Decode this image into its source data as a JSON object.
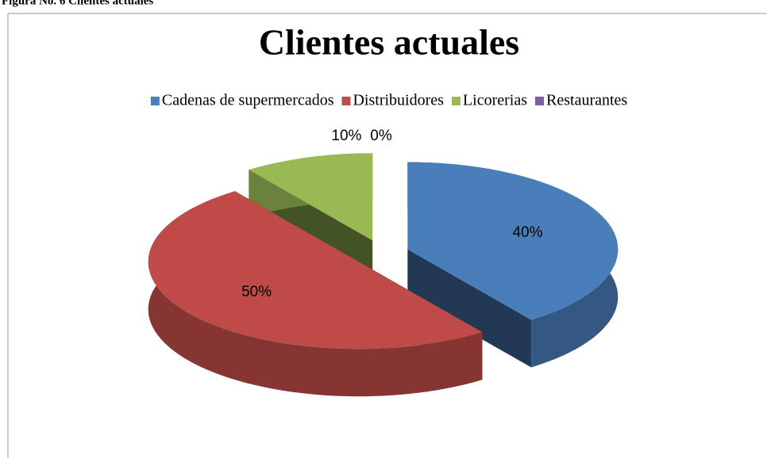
{
  "caption": "Figura No. 6 Clientes actuales",
  "chart_data": {
    "type": "pie3d",
    "title": "Clientes actuales",
    "categories": [
      "Cadenas de supermercados",
      "Distribuidores",
      "Licorerias",
      "Restaurantes"
    ],
    "values": [
      40,
      50,
      10,
      0
    ],
    "value_labels": [
      "40%",
      "50%",
      "10%",
      "0%"
    ],
    "colors": [
      "#4a7ebb",
      "#be4b48",
      "#98b954",
      "#7d60a0"
    ],
    "legend": "top"
  }
}
